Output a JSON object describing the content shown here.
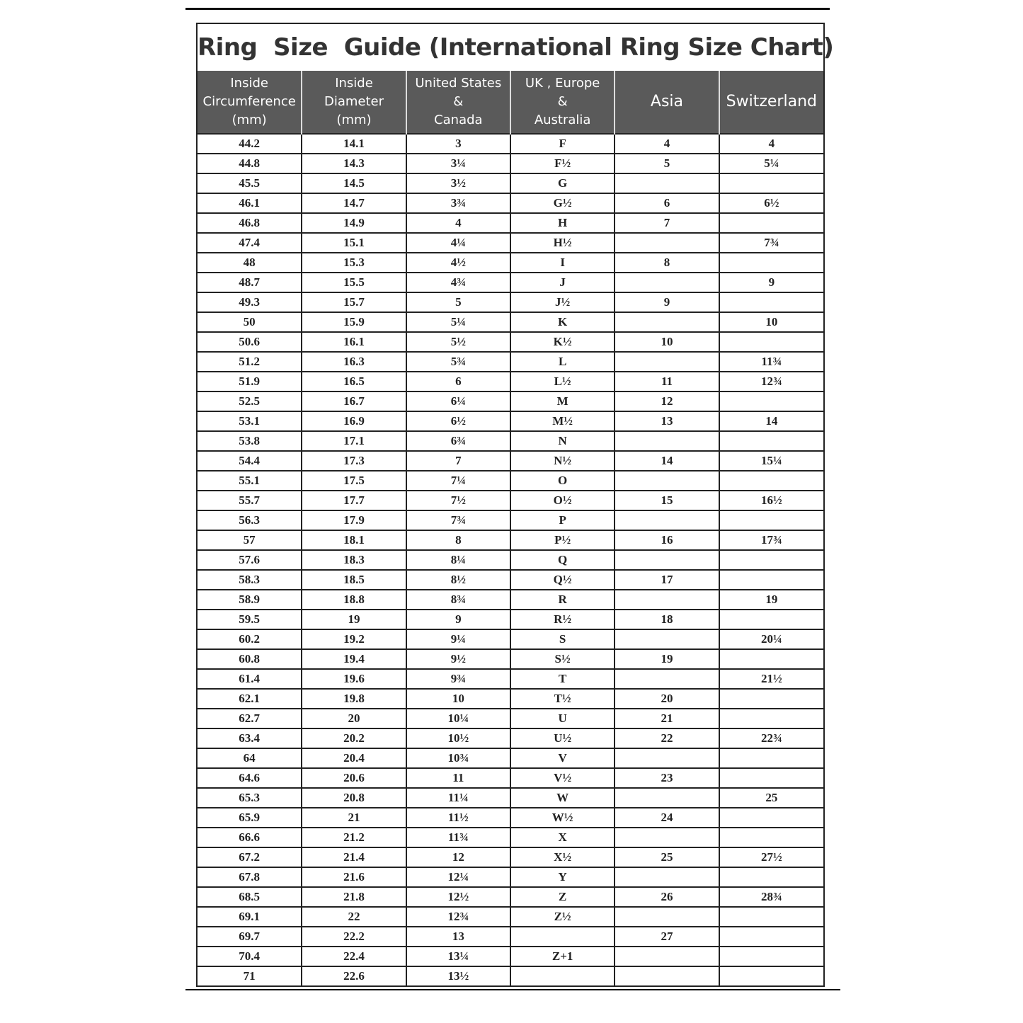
{
  "title": "Ring  Size  Guide (International Ring Size Chart)",
  "table": {
    "headers": [
      "Inside\nCircumference\n(mm)",
      "Inside\nDiameter\n(mm)",
      "United States\n&\nCanada",
      "UK , Europe\n&\nAustralia",
      "Asia",
      "Switzerland"
    ],
    "rows": [
      [
        "44.2",
        "14.1",
        "3",
        "F",
        "4",
        "4"
      ],
      [
        "44.8",
        "14.3",
        "3¼",
        "F½",
        "5",
        "5¼"
      ],
      [
        "45.5",
        "14.5",
        "3½",
        "G",
        null,
        null
      ],
      [
        "46.1",
        "14.7",
        "3¾",
        "G½",
        "6",
        "6½"
      ],
      [
        "46.8",
        "14.9",
        "4",
        "H",
        "7",
        null
      ],
      [
        "47.4",
        "15.1",
        "4¼",
        "H½",
        null,
        "7¾"
      ],
      [
        "48",
        "15.3",
        "4½",
        "I",
        "8",
        null
      ],
      [
        "48.7",
        "15.5",
        "4¾",
        "J",
        null,
        "9"
      ],
      [
        "49.3",
        "15.7",
        "5",
        "J½",
        "9",
        null
      ],
      [
        "50",
        "15.9",
        "5¼",
        "K",
        null,
        "10"
      ],
      [
        "50.6",
        "16.1",
        "5½",
        "K½",
        "10",
        null
      ],
      [
        "51.2",
        "16.3",
        "5¾",
        "L",
        null,
        "11¾"
      ],
      [
        "51.9",
        "16.5",
        "6",
        "L½",
        "11",
        "12¾"
      ],
      [
        "52.5",
        "16.7",
        "6¼",
        "M",
        "12",
        null
      ],
      [
        "53.1",
        "16.9",
        "6½",
        "M½",
        "13",
        "14"
      ],
      [
        "53.8",
        "17.1",
        "6¾",
        "N",
        null,
        null
      ],
      [
        "54.4",
        "17.3",
        "7",
        "N½",
        "14",
        "15¼"
      ],
      [
        "55.1",
        "17.5",
        "7¼",
        "O",
        null,
        null
      ],
      [
        "55.7",
        "17.7",
        "7½",
        "O½",
        "15",
        "16½"
      ],
      [
        "56.3",
        "17.9",
        "7¾",
        "P",
        null,
        null
      ],
      [
        "57",
        "18.1",
        "8",
        "P½",
        "16",
        "17¾"
      ],
      [
        "57.6",
        "18.3",
        "8¼",
        "Q",
        null,
        null
      ],
      [
        "58.3",
        "18.5",
        "8½",
        "Q½",
        "17",
        null
      ],
      [
        "58.9",
        "18.8",
        "8¾",
        "R",
        null,
        "19"
      ],
      [
        "59.5",
        "19",
        "9",
        "R½",
        "18",
        null
      ],
      [
        "60.2",
        "19.2",
        "9¼",
        "S",
        null,
        "20¼"
      ],
      [
        "60.8",
        "19.4",
        "9½",
        "S½",
        "19",
        null
      ],
      [
        "61.4",
        "19.6",
        "9¾",
        "T",
        null,
        "21½"
      ],
      [
        "62.1",
        "19.8",
        "10",
        "T½",
        "20",
        null
      ],
      [
        "62.7",
        "20",
        "10¼",
        "U",
        "21",
        null
      ],
      [
        "63.4",
        "20.2",
        "10½",
        "U½",
        "22",
        "22¾"
      ],
      [
        "64",
        "20.4",
        "10¾",
        "V",
        null,
        null
      ],
      [
        "64.6",
        "20.6",
        "11",
        "V½",
        "23",
        null
      ],
      [
        "65.3",
        "20.8",
        "11¼",
        "W",
        null,
        "25"
      ],
      [
        "65.9",
        "21",
        "11½",
        "W½",
        "24",
        null
      ],
      [
        "66.6",
        "21.2",
        "11¾",
        "X",
        null,
        null
      ],
      [
        "67.2",
        "21.4",
        "12",
        "X½",
        "25",
        "27½"
      ],
      [
        "67.8",
        "21.6",
        "12¼",
        "Y",
        null,
        null
      ],
      [
        "68.5",
        "21.8",
        "12½",
        "Z",
        "26",
        "28¾"
      ],
      [
        "69.1",
        "22",
        "12¾",
        "Z½",
        null,
        null
      ],
      [
        "69.7",
        "22.2",
        "13",
        null,
        "27",
        null
      ],
      [
        "70.4",
        "22.4",
        "13¼",
        "Z+1",
        null,
        null
      ],
      [
        "71",
        "22.6",
        "13½",
        null,
        null,
        null
      ]
    ]
  }
}
